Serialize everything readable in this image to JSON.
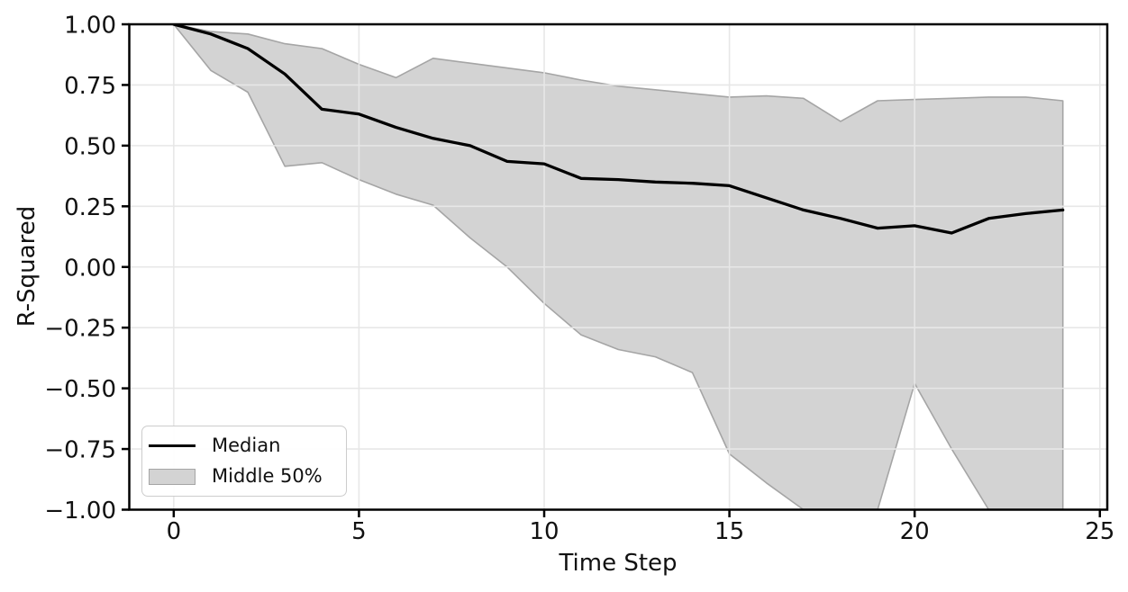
{
  "chart_data": {
    "type": "line",
    "title": "",
    "xlabel": "Time Step",
    "ylabel": "R-Squared",
    "xlim": [
      -1.2,
      25.2
    ],
    "ylim": [
      -1.0,
      1.0
    ],
    "grid": true,
    "legend_position": "lower left",
    "x": [
      0,
      1,
      2,
      3,
      4,
      5,
      6,
      7,
      8,
      9,
      10,
      11,
      12,
      13,
      14,
      15,
      16,
      17,
      18,
      19,
      20,
      21,
      22,
      23,
      24
    ],
    "series": [
      {
        "name": "Median",
        "type": "line",
        "color": "#000000",
        "values": [
          1.0,
          0.96,
          0.9,
          0.795,
          0.65,
          0.63,
          0.575,
          0.53,
          0.5,
          0.435,
          0.425,
          0.365,
          0.36,
          0.35,
          0.345,
          0.335,
          0.285,
          0.235,
          0.2,
          0.16,
          0.17,
          0.14,
          0.2,
          0.22,
          0.235
        ]
      },
      {
        "name": "Middle 50%",
        "type": "band",
        "fill_color": "#d3d3d3",
        "edge_color": "#a5a5a5",
        "upper": [
          1.0,
          0.97,
          0.96,
          0.92,
          0.9,
          0.835,
          0.78,
          0.86,
          0.84,
          0.82,
          0.8,
          0.77,
          0.745,
          0.73,
          0.715,
          0.7,
          0.705,
          0.695,
          0.6,
          0.685,
          0.69,
          0.695,
          0.7,
          0.7,
          0.685
        ],
        "lower": [
          1.0,
          0.81,
          0.72,
          0.415,
          0.43,
          0.36,
          0.3,
          0.255,
          0.12,
          0.0,
          -0.15,
          -0.28,
          -0.34,
          -0.37,
          -0.435,
          -0.77,
          -0.89,
          -1.0,
          -1.0,
          -1.0,
          -0.48,
          -0.75,
          -1.0,
          -1.0,
          -1.0
        ]
      }
    ],
    "xticks": {
      "values": [
        0,
        5,
        10,
        15,
        20,
        25
      ],
      "labels": [
        "0",
        "5",
        "10",
        "15",
        "20",
        "25"
      ]
    },
    "yticks": {
      "values": [
        1.0,
        0.75,
        0.5,
        0.25,
        0.0,
        -0.25,
        -0.5,
        -0.75,
        -1.0
      ],
      "labels": [
        "1.00",
        "0.75",
        "0.50",
        "0.25",
        "0.00",
        "−0.25",
        "−0.50",
        "−0.75",
        "−1.00"
      ]
    },
    "legend": [
      {
        "label": "Median",
        "swatch": "line"
      },
      {
        "label": "Middle 50%",
        "swatch": "patch"
      }
    ],
    "colors": {
      "grid": "#e7e7e7",
      "spine": "#000000",
      "band_fill": "#d3d3d3",
      "band_edge": "#a5a5a5",
      "median": "#000000"
    }
  }
}
